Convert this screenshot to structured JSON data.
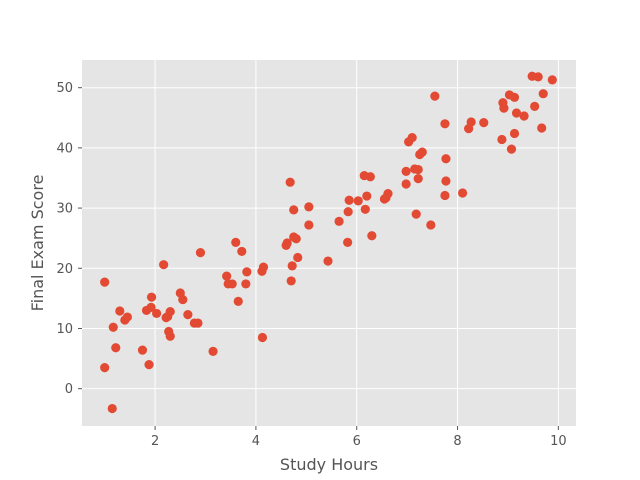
{
  "chart_data": {
    "type": "scatter",
    "title": "",
    "xlabel": "Study Hours",
    "ylabel": "Final Exam Score",
    "xlim": [
      0.55,
      10.35
    ],
    "ylim": [
      -6.2,
      54.6
    ],
    "x_ticks": [
      2,
      4,
      6,
      8,
      10
    ],
    "y_ticks": [
      0,
      10,
      20,
      30,
      40,
      50
    ],
    "grid": true,
    "legend": "none",
    "style": {
      "background": "#e5e5e5",
      "grid_color": "#ffffff",
      "marker_color": "#e24a33"
    },
    "series": [
      {
        "points": [
          [
            1.0,
            3.5
          ],
          [
            1.0,
            17.7
          ],
          [
            1.15,
            -3.3
          ],
          [
            1.17,
            10.2
          ],
          [
            1.22,
            6.8
          ],
          [
            1.3,
            12.9
          ],
          [
            1.4,
            11.4
          ],
          [
            1.45,
            11.9
          ],
          [
            1.75,
            6.4
          ],
          [
            1.83,
            13.0
          ],
          [
            1.88,
            4.0
          ],
          [
            1.92,
            13.5
          ],
          [
            1.93,
            15.2
          ],
          [
            2.03,
            12.5
          ],
          [
            2.17,
            20.6
          ],
          [
            2.22,
            11.8
          ],
          [
            2.25,
            12.0
          ],
          [
            2.27,
            9.5
          ],
          [
            2.3,
            8.7
          ],
          [
            2.3,
            12.8
          ],
          [
            2.5,
            15.9
          ],
          [
            2.55,
            14.8
          ],
          [
            2.65,
            12.3
          ],
          [
            2.78,
            10.9
          ],
          [
            2.85,
            10.9
          ],
          [
            2.9,
            22.6
          ],
          [
            3.15,
            6.2
          ],
          [
            3.42,
            18.7
          ],
          [
            3.45,
            17.4
          ],
          [
            3.53,
            17.4
          ],
          [
            3.6,
            24.3
          ],
          [
            3.65,
            14.5
          ],
          [
            3.72,
            22.8
          ],
          [
            3.8,
            17.4
          ],
          [
            3.82,
            19.4
          ],
          [
            4.12,
            19.5
          ],
          [
            4.13,
            8.5
          ],
          [
            4.15,
            20.2
          ],
          [
            4.6,
            23.8
          ],
          [
            4.62,
            24.2
          ],
          [
            4.68,
            34.3
          ],
          [
            4.7,
            17.9
          ],
          [
            4.72,
            20.4
          ],
          [
            4.75,
            25.2
          ],
          [
            4.75,
            29.7
          ],
          [
            4.8,
            24.9
          ],
          [
            4.83,
            21.8
          ],
          [
            5.05,
            27.2
          ],
          [
            5.05,
            30.2
          ],
          [
            5.43,
            21.2
          ],
          [
            5.65,
            27.8
          ],
          [
            5.82,
            24.3
          ],
          [
            5.83,
            29.4
          ],
          [
            5.85,
            31.3
          ],
          [
            6.03,
            31.2
          ],
          [
            6.15,
            35.4
          ],
          [
            6.17,
            29.8
          ],
          [
            6.2,
            32.0
          ],
          [
            6.27,
            35.2
          ],
          [
            6.3,
            25.4
          ],
          [
            6.55,
            31.5
          ],
          [
            6.58,
            31.7
          ],
          [
            6.62,
            32.4
          ],
          [
            6.98,
            36.1
          ],
          [
            6.98,
            34.0
          ],
          [
            7.03,
            41.0
          ],
          [
            7.1,
            41.7
          ],
          [
            7.15,
            36.5
          ],
          [
            7.18,
            29.0
          ],
          [
            7.22,
            34.9
          ],
          [
            7.22,
            36.4
          ],
          [
            7.25,
            38.9
          ],
          [
            7.3,
            39.3
          ],
          [
            7.47,
            27.2
          ],
          [
            7.55,
            48.6
          ],
          [
            7.75,
            44.0
          ],
          [
            7.75,
            32.1
          ],
          [
            7.77,
            38.2
          ],
          [
            7.77,
            34.5
          ],
          [
            8.1,
            32.5
          ],
          [
            8.22,
            43.2
          ],
          [
            8.27,
            44.3
          ],
          [
            8.52,
            44.2
          ],
          [
            8.88,
            41.4
          ],
          [
            8.9,
            47.5
          ],
          [
            8.92,
            46.6
          ],
          [
            9.03,
            48.8
          ],
          [
            9.07,
            39.8
          ],
          [
            9.13,
            42.4
          ],
          [
            9.13,
            48.4
          ],
          [
            9.17,
            45.8
          ],
          [
            9.32,
            45.3
          ],
          [
            9.48,
            51.9
          ],
          [
            9.53,
            46.9
          ],
          [
            9.6,
            51.8
          ],
          [
            9.67,
            43.3
          ],
          [
            9.7,
            49.0
          ],
          [
            9.88,
            51.3
          ]
        ]
      }
    ]
  }
}
